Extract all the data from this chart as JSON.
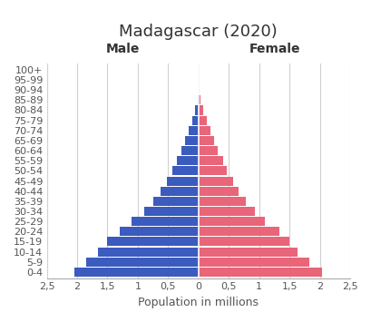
{
  "title": "Madagascar (2020)",
  "xlabel": "Population in millions",
  "male_label": "Male",
  "female_label": "Female",
  "age_groups": [
    "0-4",
    "5-9",
    "10-14",
    "15-19",
    "20-24",
    "25-29",
    "30-34",
    "35-39",
    "40-44",
    "45-49",
    "50-54",
    "55-59",
    "60-64",
    "65-69",
    "70-74",
    "75-79",
    "80-84",
    "85-89",
    "90-94",
    "95-99",
    "100+"
  ],
  "male_values": [
    2.05,
    1.85,
    1.65,
    1.5,
    1.3,
    1.1,
    0.9,
    0.75,
    0.62,
    0.52,
    0.43,
    0.36,
    0.28,
    0.22,
    0.16,
    0.1,
    0.06,
    0.02,
    0.005,
    0.001,
    0.0005
  ],
  "female_values": [
    2.03,
    1.83,
    1.63,
    1.5,
    1.33,
    1.1,
    0.93,
    0.78,
    0.66,
    0.57,
    0.47,
    0.4,
    0.32,
    0.26,
    0.2,
    0.13,
    0.07,
    0.025,
    0.008,
    0.002,
    0.0005
  ],
  "male_color": "#3B5BBE",
  "female_color": "#E8657A",
  "xlim": 2.5,
  "xtick_positions": [
    -2.5,
    -2.0,
    -1.5,
    -1.0,
    -0.5,
    0.0,
    0.5,
    1.0,
    1.5,
    2.0,
    2.5
  ],
  "xtick_labels": [
    "2,5",
    "2",
    "1,5",
    "1",
    "0,5",
    "0",
    "0,5",
    "1",
    "1,5",
    "2",
    "2,5"
  ],
  "background_color": "#ffffff",
  "grid_color": "#d0d0d0",
  "title_fontsize": 13,
  "label_fontsize": 9,
  "tick_fontsize": 8,
  "bar_height": 0.9
}
